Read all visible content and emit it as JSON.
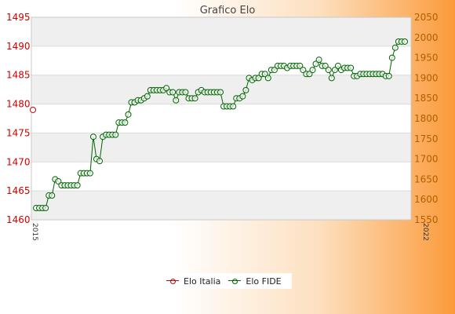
{
  "chart_data": {
    "type": "line",
    "title": "Grafico Elo",
    "grid": true,
    "legend_position": "bottom",
    "y_left": {
      "ylim": [
        1460,
        1495
      ],
      "ticks": [
        1460,
        1465,
        1470,
        1475,
        1480,
        1485,
        1490,
        1495
      ],
      "color": "#d00000"
    },
    "y_right": {
      "ylim": [
        1550,
        2050
      ],
      "ticks": [
        1550,
        1600,
        1650,
        1700,
        1750,
        1800,
        1850,
        1900,
        1950,
        2000,
        2050
      ],
      "color": "#b06000"
    },
    "x_first_label": "2015",
    "x_last_label": "2022",
    "series": [
      {
        "name": "Elo Italia",
        "axis": "left",
        "color": "#d00000",
        "values": [
          1479
        ]
      },
      {
        "name": "Elo FIDE",
        "axis": "right",
        "color": "#006400",
        "values": [
          1579,
          1579,
          1579,
          1579,
          1610,
          1610,
          1650,
          1645,
          1635,
          1635,
          1635,
          1635,
          1635,
          1635,
          1665,
          1665,
          1665,
          1665,
          1755,
          1700,
          1695,
          1755,
          1760,
          1760,
          1760,
          1760,
          1790,
          1790,
          1790,
          1810,
          1840,
          1840,
          1845,
          1845,
          1850,
          1855,
          1870,
          1870,
          1870,
          1870,
          1870,
          1875,
          1865,
          1865,
          1845,
          1865,
          1865,
          1865,
          1850,
          1850,
          1850,
          1865,
          1870,
          1865,
          1865,
          1865,
          1865,
          1865,
          1865,
          1830,
          1830,
          1830,
          1830,
          1850,
          1850,
          1855,
          1870,
          1900,
          1895,
          1900,
          1900,
          1910,
          1910,
          1900,
          1920,
          1920,
          1930,
          1930,
          1930,
          1925,
          1930,
          1930,
          1930,
          1930,
          1920,
          1910,
          1910,
          1920,
          1935,
          1945,
          1930,
          1930,
          1920,
          1900,
          1920,
          1930,
          1920,
          1925,
          1925,
          1925,
          1905,
          1905,
          1910,
          1910,
          1910,
          1910,
          1910,
          1910,
          1910,
          1910,
          1905,
          1905,
          1950,
          1975,
          1990,
          1990,
          1990
        ]
      }
    ]
  }
}
